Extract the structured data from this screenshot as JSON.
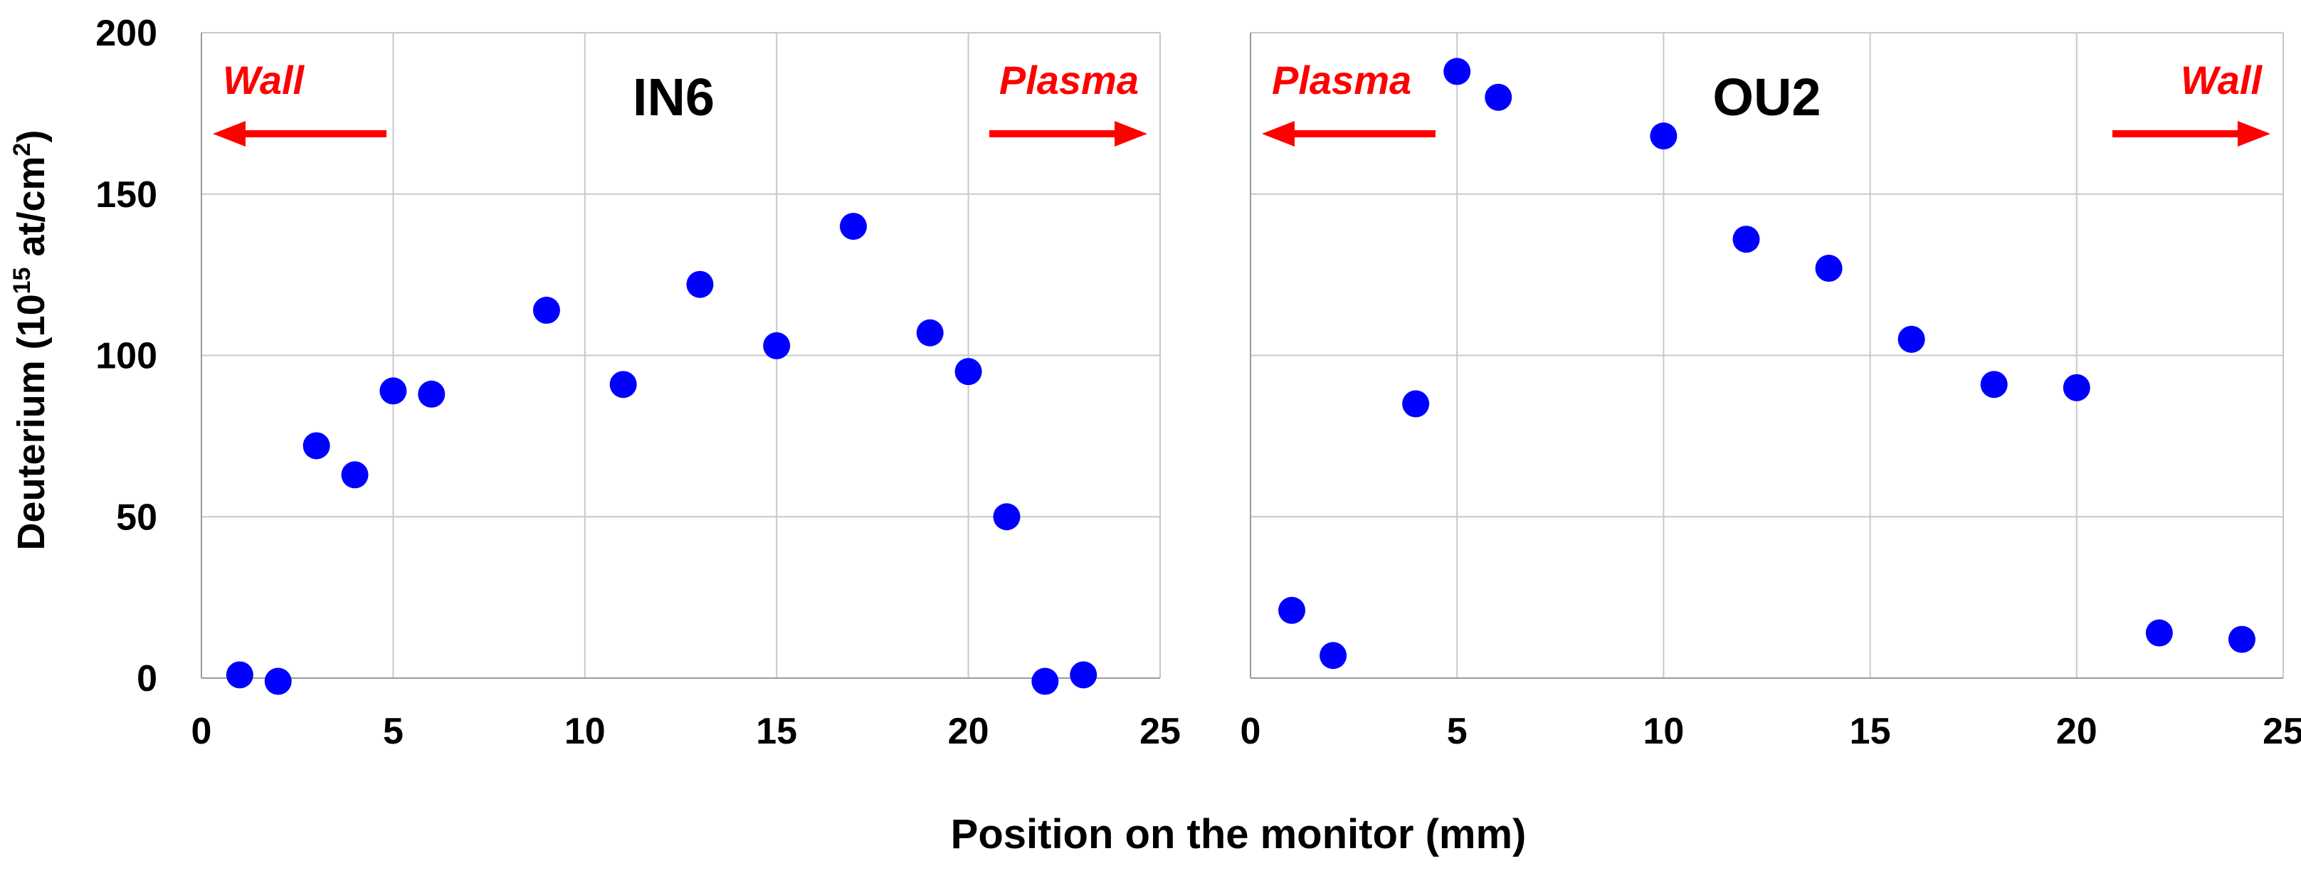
{
  "figure": {
    "ylabel_main": "Deuterium (10",
    "ylabel_sup": "15",
    "ylabel_mid": " at/cm",
    "ylabel_sup2": "2",
    "ylabel_end": ")",
    "xlabel": "Position on the monitor (mm)"
  },
  "chart_data": [
    {
      "type": "scatter",
      "title": "IN6",
      "xlabel": "Position on the monitor (mm)",
      "ylabel": "Deuterium (10^15 at/cm^2)",
      "xlim": [
        0,
        25
      ],
      "ylim": [
        0,
        200
      ],
      "xticks": [
        0,
        5,
        10,
        15,
        20,
        25
      ],
      "yticks": [
        0,
        50,
        100,
        150,
        200
      ],
      "grid": true,
      "marker_color": "#0000ff",
      "series": [
        {
          "name": "IN6",
          "x": [
            1,
            2,
            3,
            4,
            5,
            6,
            9,
            11,
            13,
            15,
            17,
            19,
            20,
            21,
            22,
            23
          ],
          "y": [
            1,
            -1,
            72,
            63,
            89,
            88,
            114,
            91,
            122,
            103,
            140,
            107,
            95,
            50,
            -1,
            1
          ]
        }
      ],
      "annotations": [
        {
          "text": "Wall",
          "direction": "left",
          "placement": "top-left",
          "color": "#ff0000"
        },
        {
          "text": "Plasma",
          "direction": "right",
          "placement": "top-right",
          "color": "#ff0000"
        }
      ]
    },
    {
      "type": "scatter",
      "title": "OU2",
      "xlabel": "Position on the monitor (mm)",
      "ylabel": "",
      "xlim": [
        0,
        25
      ],
      "ylim": [
        0,
        200
      ],
      "xticks": [
        0,
        5,
        10,
        15,
        20,
        25
      ],
      "yticks": [
        0,
        50,
        100,
        150,
        200
      ],
      "grid": true,
      "marker_color": "#0000ff",
      "series": [
        {
          "name": "OU2",
          "x": [
            1,
            2,
            4,
            5,
            6,
            10,
            12,
            14,
            16,
            18,
            20,
            22,
            24
          ],
          "y": [
            21,
            7,
            85,
            188,
            180,
            168,
            136,
            127,
            105,
            91,
            90,
            14,
            12
          ]
        }
      ],
      "annotations": [
        {
          "text": "Plasma",
          "direction": "left",
          "placement": "top-left",
          "color": "#ff0000"
        },
        {
          "text": "Wall",
          "direction": "right",
          "placement": "top-right",
          "color": "#ff0000"
        }
      ]
    }
  ]
}
